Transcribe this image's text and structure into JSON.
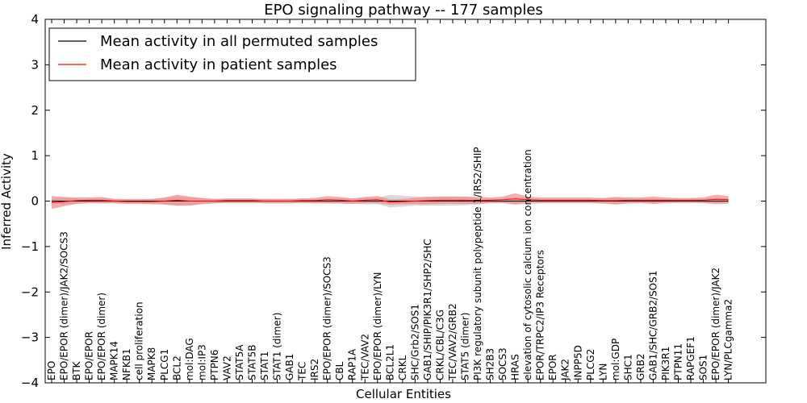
{
  "chart_data": {
    "type": "line",
    "title": "EPO signaling pathway -- 177 samples",
    "xlabel": "Cellular Entities",
    "ylabel": "Inferred Activity",
    "ylim": [
      -4,
      4
    ],
    "yticks": [
      4,
      3,
      2,
      1,
      0,
      -1,
      -2,
      -3,
      -4
    ],
    "ytick_labels": [
      "4",
      "3",
      "2",
      "1",
      "0",
      "−1",
      "−2",
      "−3",
      "−4"
    ],
    "legend_position": "top-left",
    "categories": [
      "EPO",
      "EPO/EPOR (dimer)/JAK2/SOCS3",
      "BTK",
      "EPO/EPOR",
      "EPO/EPOR (dimer)",
      "MAPK14",
      "NFKB1",
      "cell proliferation",
      "MAPK8",
      "PLCG1",
      "BCL2",
      "mol:DAG",
      "mol:IP3",
      "PTPN6",
      "VAV2",
      "STAT5A",
      "STAT5B",
      "STAT1",
      "STAT1 (dimer)",
      "GAB1",
      "TEC",
      "IRS2",
      "EPO/EPOR (dimer)/SOCS3",
      "CBL",
      "RAP1A",
      "TEC/VAV2",
      "EPO/EPOR (dimer)/LYN",
      "BCL2L1",
      "CRKL",
      "SHC/Grb2/SOS1",
      "GAB1/SHIP/PIK3R1/SHP2/SHC",
      "CRKL/CBL/C3G",
      "TEC/VAV2/GRB2",
      "STAT5 (dimer)",
      "PI3K regulatory subunit polypeptide 1/IRS2/SHIP",
      "SH2B3",
      "SOCS3",
      "HRAS",
      "elevation of cytosolic calcium ion concentration",
      "EPOR/TRPC2/IP3 Receptors",
      "EPOR",
      "JAK2",
      "INPP5D",
      "PLCG2",
      "LYN",
      "mol:GDP",
      "SHC1",
      "GRB2",
      "GAB1/SHC/GRB2/SOS1",
      "PIK3R1",
      "PTPN11",
      "RAPGEF1",
      "SOS1",
      "EPO/EPOR (dimer)/JAK2",
      "LYN/PLCgamma2"
    ],
    "series": [
      {
        "name": "Mean activity in all permuted samples",
        "color": "#000000",
        "values": [
          0,
          0,
          0,
          0,
          0,
          0,
          0,
          0,
          0,
          0,
          0,
          0,
          0,
          0,
          0,
          0,
          0,
          0,
          0,
          0,
          0,
          0,
          0,
          0,
          0,
          0,
          0,
          0,
          0,
          0,
          0,
          0,
          0,
          0,
          0,
          0,
          0,
          0,
          0,
          0,
          0,
          0,
          0,
          0,
          0,
          0,
          0,
          0,
          0,
          0,
          0,
          0,
          0,
          0,
          0
        ],
        "band_halfwidth": [
          0.05,
          0.08,
          0.06,
          0.05,
          0.05,
          0.05,
          0.05,
          0.05,
          0.05,
          0.06,
          0.1,
          0.08,
          0.06,
          0.05,
          0.05,
          0.05,
          0.05,
          0.05,
          0.05,
          0.05,
          0.05,
          0.05,
          0.05,
          0.06,
          0.06,
          0.07,
          0.07,
          0.14,
          0.12,
          0.1,
          0.1,
          0.1,
          0.1,
          0.09,
          0.06,
          0.05,
          0.05,
          0.08,
          0.06,
          0.05,
          0.05,
          0.05,
          0.05,
          0.05,
          0.06,
          0.08,
          0.06,
          0.05,
          0.06,
          0.05,
          0.05,
          0.05,
          0.05,
          0.07,
          0.06
        ],
        "band_color": "#cccccc"
      },
      {
        "name": "Mean activity in patient samples",
        "color": "#ff0000",
        "values": [
          -0.03,
          -0.01,
          0.01,
          0.02,
          0.02,
          0.0,
          -0.01,
          -0.01,
          -0.01,
          0.0,
          0.02,
          0.0,
          0.0,
          0.0,
          0.01,
          0.01,
          0.01,
          0.0,
          0.0,
          0.0,
          0.01,
          0.01,
          0.03,
          0.02,
          0.0,
          0.02,
          0.03,
          -0.02,
          -0.01,
          0.0,
          0.01,
          0.02,
          0.02,
          0.02,
          0.01,
          0.02,
          0.03,
          0.05,
          0.03,
          0.02,
          0.02,
          0.02,
          0.02,
          0.02,
          0.01,
          0.01,
          0.02,
          0.02,
          0.02,
          0.02,
          0.02,
          0.02,
          0.02,
          0.04,
          0.03
        ],
        "band_halfwidth": [
          0.14,
          0.1,
          0.07,
          0.06,
          0.07,
          0.05,
          0.05,
          0.05,
          0.06,
          0.08,
          0.12,
          0.1,
          0.07,
          0.05,
          0.05,
          0.05,
          0.05,
          0.05,
          0.05,
          0.05,
          0.05,
          0.06,
          0.08,
          0.07,
          0.06,
          0.07,
          0.08,
          0.06,
          0.06,
          0.07,
          0.08,
          0.08,
          0.08,
          0.08,
          0.08,
          0.06,
          0.07,
          0.12,
          0.07,
          0.06,
          0.06,
          0.06,
          0.06,
          0.06,
          0.06,
          0.08,
          0.06,
          0.06,
          0.08,
          0.06,
          0.05,
          0.05,
          0.06,
          0.1,
          0.08
        ],
        "band_color": "#f08080"
      }
    ]
  }
}
